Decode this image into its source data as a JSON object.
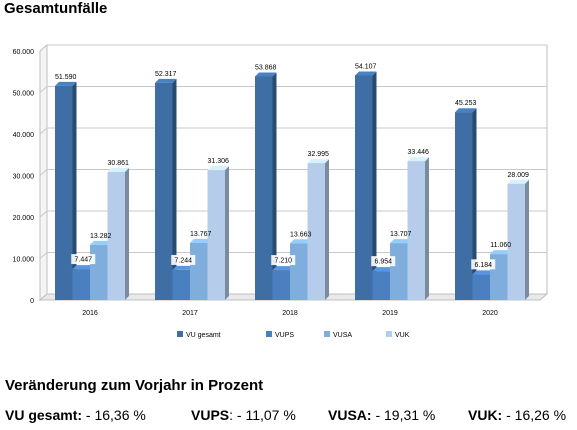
{
  "title": "Gesamtunfälle",
  "chart_data": {
    "type": "bar",
    "title": "Gesamtunfälle",
    "categories": [
      "2016",
      "2017",
      "2018",
      "2019",
      "2020"
    ],
    "series": [
      {
        "name": "VU gesamt",
        "values": [
          51590,
          52317,
          53868,
          54107,
          45253
        ],
        "labels": [
          "51.590",
          "52.317",
          "53.868",
          "54.107",
          "45.253"
        ],
        "color": "#3E6EA3"
      },
      {
        "name": "VUPS",
        "values": [
          7447,
          7244,
          7210,
          6954,
          6184
        ],
        "labels": [
          "7.447",
          "7.244",
          "7.210",
          "6.954",
          "6.184"
        ],
        "color": "#4A7FC0"
      },
      {
        "name": "VUSA",
        "values": [
          13282,
          13767,
          13663,
          13707,
          11060
        ],
        "labels": [
          "13.282",
          "13.767",
          "13.663",
          "13.707",
          "11.060"
        ],
        "color": "#7FAEDD"
      },
      {
        "name": "VUK",
        "values": [
          30861,
          31306,
          32995,
          33446,
          28009
        ],
        "labels": [
          "30.861",
          "31.306",
          "32.995",
          "33.446",
          "28.009"
        ],
        "color": "#B5CCEA"
      }
    ],
    "ylim": [
      0,
      60000
    ],
    "yticks": [
      "0",
      "10.000",
      "20.000",
      "30.000",
      "40.000",
      "50.000",
      "60.000"
    ],
    "grid": true,
    "legend": "bottom"
  },
  "summary": {
    "heading": "Veränderung zum Vorjahr in Prozent",
    "items": [
      {
        "label": "VU gesamt:",
        "value": " - 16,36 %"
      },
      {
        "label": "VUPS",
        "value": ": - 11,07 %"
      },
      {
        "label": "VUSA:",
        "value": " - 19,31 %"
      },
      {
        "label": "VUK:",
        "value": " - 16,26 %"
      }
    ]
  }
}
